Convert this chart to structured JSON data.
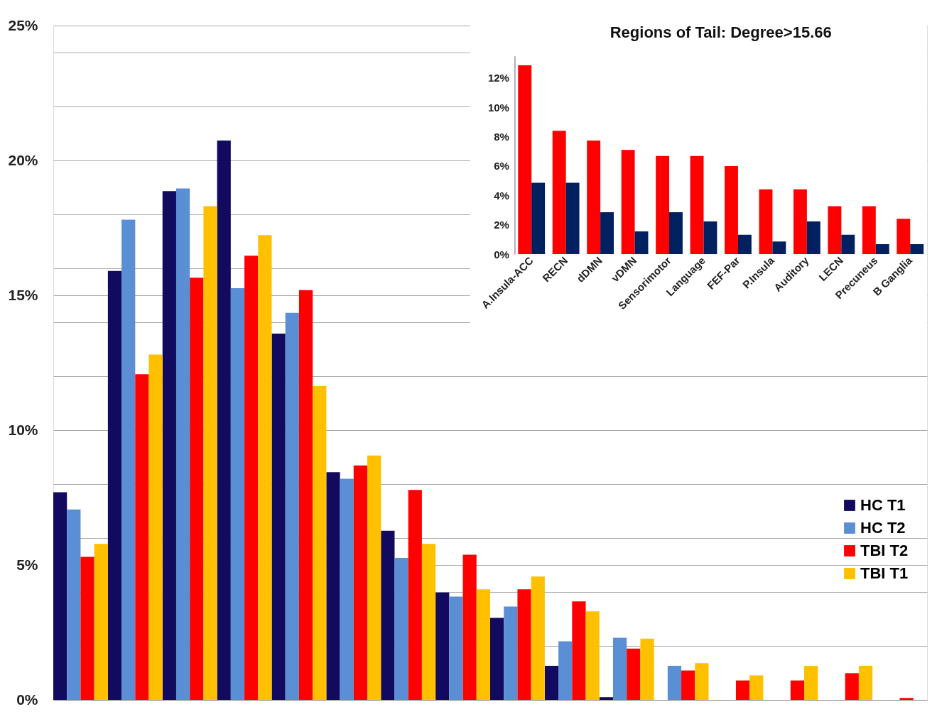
{
  "chart_data": [
    {
      "type": "bar",
      "categories": [
        null,
        null,
        null,
        null,
        null,
        null,
        null,
        null,
        null,
        null,
        null,
        null,
        null,
        null,
        null,
        null
      ],
      "series": [
        {
          "name": "HC T1",
          "color": "#120a5e",
          "values": [
            7.7,
            15.9,
            18.86,
            20.74,
            13.58,
            8.44,
            6.27,
            3.98,
            3.04,
            1.26,
            0.1,
            0,
            0,
            0,
            0,
            0
          ]
        },
        {
          "name": "HC T2",
          "color": "#5a8fd6",
          "values": [
            7.06,
            17.8,
            18.96,
            15.26,
            14.35,
            8.2,
            5.26,
            3.83,
            3.46,
            2.17,
            2.3,
            1.26,
            0,
            0,
            0,
            0
          ]
        },
        {
          "name": "TBI T2",
          "color": "#ff0000",
          "values": [
            5.3,
            12.07,
            15.65,
            16.47,
            15.19,
            8.69,
            7.78,
            5.38,
            4.1,
            3.65,
            1.9,
            1.09,
            0.72,
            0.72,
            0.99,
            0.07
          ]
        },
        {
          "name": "TBI T1",
          "color": "#ffc000",
          "values": [
            5.78,
            12.8,
            18.3,
            17.23,
            11.63,
            9.06,
            5.78,
            4.1,
            4.57,
            3.28,
            2.27,
            1.36,
            0.91,
            1.26,
            1.26,
            0
          ]
        }
      ],
      "ylim": [
        0,
        25
      ],
      "yticks": [
        {
          "value": 0,
          "label": "0%"
        },
        {
          "value": 2,
          "label": null
        },
        {
          "value": 4,
          "label": null
        },
        {
          "value": 5,
          "label": "5%"
        },
        {
          "value": 6,
          "label": null
        },
        {
          "value": 8,
          "label": null
        },
        {
          "value": 10,
          "label": "10%"
        },
        {
          "value": 12,
          "label": null
        },
        {
          "value": 14,
          "label": null
        },
        {
          "value": 15,
          "label": "15%"
        },
        {
          "value": 16,
          "label": null
        },
        {
          "value": 18,
          "label": null
        },
        {
          "value": 20,
          "label": "20%"
        },
        {
          "value": 22,
          "label": null
        },
        {
          "value": 24,
          "label": null
        },
        {
          "value": 25,
          "label": "25%"
        }
      ],
      "grid": "y",
      "legend": "right"
    },
    {
      "type": "bar",
      "title": "Regions of Tail: Degree>15.66",
      "categories": [
        "A.Insula-ACC",
        "RECN",
        "dDMN",
        "vDMN",
        "Sensorimotor",
        "Language",
        "FEF-Par",
        "P.Insula",
        "Auditory",
        "LECN",
        "Precuneus",
        "B Ganglia"
      ],
      "series": [
        {
          "color": "#ff0000",
          "values": [
            12.86,
            8.4,
            7.73,
            7.09,
            6.68,
            6.68,
            6.0,
            4.41,
            4.41,
            3.27,
            3.27,
            2.41
          ]
        },
        {
          "color": "#002060",
          "values": [
            4.86,
            4.86,
            2.86,
            1.55,
            2.86,
            2.23,
            1.32,
            0.86,
            2.23,
            1.32,
            0.68,
            0.68
          ]
        }
      ],
      "ylim": [
        0,
        13.5
      ],
      "yticks": [
        {
          "value": 0,
          "label": "0%"
        },
        {
          "value": 2,
          "label": "2%"
        },
        {
          "value": 4,
          "label": "4%"
        },
        {
          "value": 6,
          "label": "6%"
        },
        {
          "value": 8,
          "label": "8%"
        },
        {
          "value": 10,
          "label": "10%"
        },
        {
          "value": 12,
          "label": "12%"
        }
      ],
      "grid": false
    }
  ]
}
